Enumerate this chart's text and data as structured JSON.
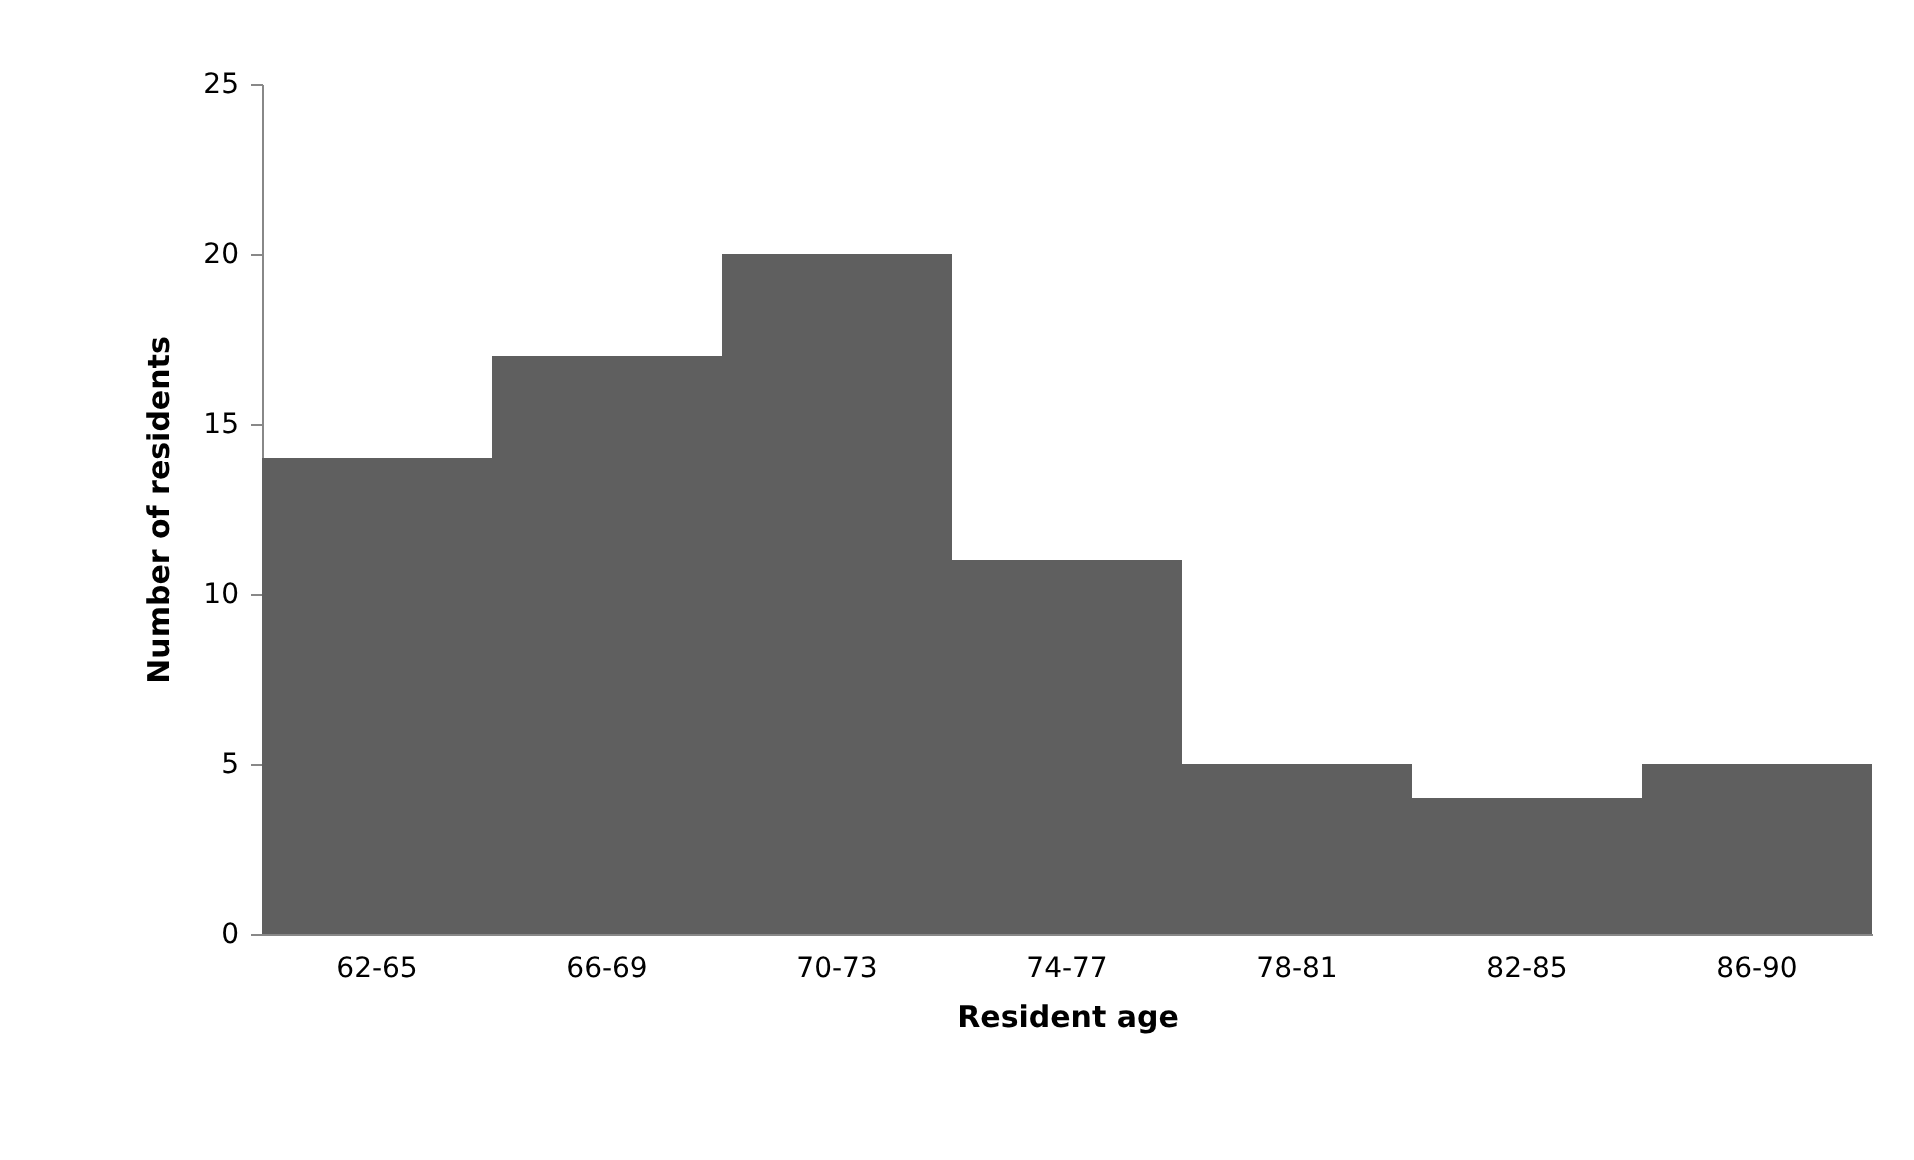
{
  "chart_data": {
    "type": "bar",
    "categories": [
      "62-65",
      "66-69",
      "70-73",
      "74-77",
      "78-81",
      "82-85",
      "86-90"
    ],
    "values": [
      14,
      17,
      20,
      11,
      5,
      4,
      5
    ],
    "color": "#5f5f5f",
    "xlabel": "Resident age",
    "ylabel": "Number of residents",
    "ylim": [
      0,
      25
    ],
    "yticks": [
      0,
      5,
      10,
      15,
      20,
      25
    ],
    "grid": false
  }
}
